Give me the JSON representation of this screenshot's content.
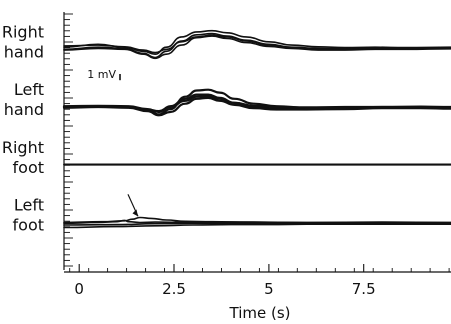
{
  "chart_data": {
    "type": "line",
    "xlabel": "Time (s)",
    "x_ticks": [
      "0",
      "2.5",
      "5",
      "7.5"
    ],
    "x_tick_values": [
      0,
      2.5,
      5,
      7.5
    ],
    "xlim": [
      -0.4,
      9.8
    ],
    "scale_bar": {
      "label": "1 mV",
      "value_mv": 1
    },
    "ylim_mv": [
      -3.2,
      3.2
    ],
    "panels": [
      {
        "label_lines": [
          "Right",
          "hand"
        ],
        "baseline_mv": 2.2,
        "series": [
          {
            "x": [
              -0.4,
              0.5,
              1.2,
              1.7,
              2.0,
              2.3,
              2.7,
              3.1,
              3.5,
              3.9,
              4.4,
              5.0,
              5.6,
              6.3,
              7.0,
              7.8,
              8.6,
              9.8
            ],
            "y": [
              0.05,
              0.12,
              0.05,
              -0.05,
              -0.12,
              0.05,
              0.3,
              0.42,
              0.45,
              0.4,
              0.3,
              0.18,
              0.1,
              0.06,
              0.04,
              0.05,
              0.04,
              0.05
            ]
          },
          {
            "x": [
              -0.4,
              0.5,
              1.2,
              1.7,
              2.0,
              2.3,
              2.7,
              3.1,
              3.5,
              3.9,
              4.4,
              5.0,
              5.6,
              6.3,
              7.0,
              7.8,
              8.6,
              9.8
            ],
            "y": [
              0.0,
              0.05,
              0.02,
              -0.1,
              -0.2,
              -0.05,
              0.2,
              0.35,
              0.38,
              0.32,
              0.22,
              0.12,
              0.05,
              0.02,
              0.01,
              0.02,
              0.02,
              0.03
            ]
          },
          {
            "x": [
              -0.4,
              0.5,
              1.2,
              1.7,
              2.0,
              2.3,
              2.7,
              3.1,
              3.5,
              3.9,
              4.4,
              5.0,
              5.6,
              6.3,
              7.0,
              7.8,
              8.6,
              9.8
            ],
            "y": [
              -0.02,
              0.02,
              0.0,
              -0.12,
              -0.22,
              -0.12,
              0.1,
              0.28,
              0.32,
              0.26,
              0.16,
              0.07,
              0.02,
              -0.02,
              -0.02,
              0.0,
              0.0,
              0.01
            ]
          },
          {
            "x": [
              -0.4,
              0.5,
              1.2,
              1.7,
              2.0,
              2.3,
              2.7,
              3.1,
              3.5,
              3.9,
              4.4,
              5.0,
              5.6,
              6.3,
              7.0,
              7.8,
              8.6,
              9.8
            ],
            "y": [
              0.08,
              0.1,
              0.06,
              -0.02,
              -0.08,
              0.0,
              0.18,
              0.3,
              0.34,
              0.3,
              0.2,
              0.1,
              0.04,
              0.0,
              0.0,
              0.02,
              0.01,
              0.02
            ]
          }
        ]
      },
      {
        "label_lines": [
          "Left",
          "hand"
        ],
        "baseline_mv": 0.8,
        "series": [
          {
            "x": [
              -0.4,
              0.5,
              1.3,
              1.8,
              2.1,
              2.4,
              2.8,
              3.1,
              3.4,
              3.7,
              4.1,
              4.6,
              5.2,
              6.0,
              7.0,
              8.0,
              9.0,
              9.8
            ],
            "y": [
              0.0,
              0.02,
              0.0,
              -0.08,
              -0.18,
              -0.05,
              0.25,
              0.4,
              0.42,
              0.35,
              0.2,
              0.08,
              0.02,
              -0.02,
              0.0,
              0.0,
              0.01,
              0.0
            ]
          },
          {
            "x": [
              -0.4,
              0.5,
              1.3,
              1.8,
              2.1,
              2.4,
              2.8,
              3.1,
              3.4,
              3.7,
              4.1,
              4.6,
              5.2,
              6.0,
              7.0,
              8.0,
              9.0,
              9.8
            ],
            "y": [
              0.02,
              0.03,
              0.02,
              -0.05,
              -0.12,
              0.02,
              0.2,
              0.3,
              0.3,
              0.22,
              0.1,
              0.0,
              -0.05,
              -0.05,
              -0.04,
              -0.02,
              -0.02,
              -0.02
            ]
          },
          {
            "x": [
              -0.4,
              0.5,
              1.3,
              1.8,
              2.1,
              2.4,
              2.8,
              3.1,
              3.4,
              3.7,
              4.1,
              4.6,
              5.2,
              6.0,
              7.0,
              8.0,
              9.0,
              9.8
            ],
            "y": [
              -0.02,
              0.0,
              -0.02,
              -0.1,
              -0.2,
              -0.12,
              0.08,
              0.2,
              0.22,
              0.15,
              0.05,
              -0.03,
              -0.06,
              -0.06,
              -0.05,
              -0.03,
              -0.03,
              -0.04
            ]
          },
          {
            "x": [
              -0.4,
              0.5,
              1.3,
              1.8,
              2.1,
              2.4,
              2.8,
              3.1,
              3.4,
              3.7,
              4.1,
              4.6,
              5.2,
              6.0,
              7.0,
              8.0,
              9.0,
              9.8
            ],
            "y": [
              0.01,
              0.01,
              0.0,
              -0.06,
              -0.1,
              0.0,
              0.15,
              0.25,
              0.26,
              0.2,
              0.1,
              0.03,
              0.0,
              -0.01,
              -0.01,
              0.0,
              0.0,
              -0.01
            ]
          }
        ]
      },
      {
        "label_lines": [
          "Right",
          "foot"
        ],
        "baseline_mv": -0.6,
        "series": [
          {
            "x": [
              -0.4,
              9.8
            ],
            "y": [
              0.0,
              0.0
            ]
          },
          {
            "x": [
              -0.4,
              9.8
            ],
            "y": [
              0.01,
              0.01
            ]
          }
        ]
      },
      {
        "label_lines": [
          "Left",
          "foot"
        ],
        "baseline_mv": -2.0,
        "annotation": {
          "type": "arrow",
          "x": 1.55
        },
        "series": [
          {
            "x": [
              -0.4,
              0.6,
              1.2,
              1.4,
              1.6,
              1.9,
              2.3,
              2.8,
              3.5,
              4.5,
              6.0,
              7.5,
              9.0,
              9.8
            ],
            "y": [
              0.0,
              0.02,
              0.04,
              0.08,
              0.12,
              0.1,
              0.06,
              0.03,
              0.02,
              0.01,
              0.0,
              0.0,
              0.0,
              0.0
            ]
          },
          {
            "x": [
              -0.4,
              1.0,
              2.0,
              3.0,
              4.0,
              5.0,
              6.0,
              7.0,
              8.0,
              9.0,
              9.8
            ],
            "y": [
              -0.06,
              -0.05,
              -0.03,
              -0.02,
              -0.02,
              -0.02,
              -0.02,
              -0.02,
              -0.02,
              -0.02,
              -0.02
            ]
          },
          {
            "x": [
              -0.4,
              0.5,
              1.0,
              1.2,
              1.3,
              1.6,
              2.0,
              3.0,
              4.0,
              6.0,
              8.0,
              9.8
            ],
            "y": [
              -0.02,
              0.0,
              0.02,
              0.05,
              0.02,
              0.0,
              0.01,
              0.0,
              0.01,
              0.0,
              0.01,
              0.0
            ]
          },
          {
            "x": [
              -0.4,
              1.0,
              2.0,
              3.0,
              4.0,
              5.0,
              6.0,
              7.0,
              8.0,
              9.0,
              9.8
            ],
            "y": [
              -0.12,
              -0.1,
              -0.08,
              -0.06,
              -0.05,
              -0.05,
              -0.04,
              -0.04,
              -0.04,
              -0.04,
              -0.04
            ]
          }
        ]
      }
    ]
  }
}
